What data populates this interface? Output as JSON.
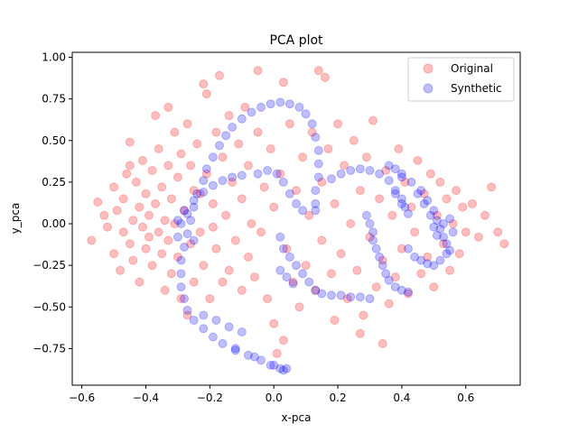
{
  "chart_data": {
    "type": "scatter",
    "title": "PCA plot",
    "xlabel": "x-pca",
    "ylabel": "y_pca",
    "xlim": [
      -0.63,
      0.77
    ],
    "ylim": [
      -0.97,
      1.03
    ],
    "xticks": [
      -0.6,
      -0.4,
      -0.2,
      0.0,
      0.2,
      0.4,
      0.6
    ],
    "xtick_labels": [
      "−0.6",
      "−0.4",
      "−0.2",
      "0.0",
      "0.2",
      "0.4",
      "0.6"
    ],
    "yticks": [
      -0.75,
      -0.5,
      -0.25,
      0.0,
      0.25,
      0.5,
      0.75,
      1.0
    ],
    "ytick_labels": [
      "−0.75",
      "−0.50",
      "−0.25",
      "0.00",
      "0.25",
      "0.50",
      "0.75",
      "1.00"
    ],
    "grid": false,
    "legend_position": "top-right",
    "series": [
      {
        "name": "Original",
        "color": "#ff0000",
        "alpha": 0.25,
        "points": [
          [
            -0.57,
            -0.1
          ],
          [
            -0.55,
            0.13
          ],
          [
            -0.53,
            0.05
          ],
          [
            -0.52,
            -0.02
          ],
          [
            -0.5,
            0.22
          ],
          [
            -0.5,
            -0.18
          ],
          [
            -0.49,
            0.08
          ],
          [
            -0.48,
            -0.28
          ],
          [
            -0.47,
            0.15
          ],
          [
            -0.47,
            -0.05
          ],
          [
            -0.46,
            0.3
          ],
          [
            -0.45,
            -0.12
          ],
          [
            -0.45,
            0.49
          ],
          [
            -0.44,
            0.02
          ],
          [
            -0.44,
            -0.22
          ],
          [
            -0.43,
            0.25
          ],
          [
            -0.42,
            -0.35
          ],
          [
            -0.42,
            0.1
          ],
          [
            -0.41,
            -0.02
          ],
          [
            -0.41,
            0.38
          ],
          [
            -0.4,
            -0.15
          ],
          [
            -0.4,
            0.18
          ],
          [
            -0.39,
            -0.08
          ],
          [
            -0.39,
            0.05
          ],
          [
            -0.38,
            0.32
          ],
          [
            -0.38,
            -0.25
          ],
          [
            -0.37,
            0.65
          ],
          [
            -0.37,
            0.12
          ],
          [
            -0.36,
            -0.05
          ],
          [
            -0.36,
            0.45
          ],
          [
            -0.35,
            -0.18
          ],
          [
            -0.35,
            0.22
          ],
          [
            -0.34,
            0.02
          ],
          [
            -0.34,
            -0.4
          ],
          [
            -0.33,
            0.35
          ],
          [
            -0.33,
            -0.1
          ],
          [
            -0.33,
            0.7
          ],
          [
            -0.32,
            0.15
          ],
          [
            -0.32,
            -0.3
          ],
          [
            -0.31,
            0.55
          ],
          [
            -0.31,
            0.0
          ],
          [
            -0.3,
            -0.2
          ],
          [
            -0.3,
            0.28
          ],
          [
            -0.29,
            0.42
          ],
          [
            -0.29,
            -0.45
          ],
          [
            -0.28,
            0.08
          ],
          [
            -0.27,
            -0.55
          ],
          [
            -0.27,
            0.6
          ],
          [
            -0.26,
            -0.12
          ],
          [
            -0.26,
            0.35
          ],
          [
            -0.25,
            0.2
          ],
          [
            -0.25,
            -0.35
          ],
          [
            -0.24,
            0.48
          ],
          [
            -0.23,
            -0.05
          ],
          [
            -0.22,
            0.84
          ],
          [
            -0.22,
            -0.25
          ],
          [
            -0.21,
            0.3
          ],
          [
            -0.21,
            0.78
          ],
          [
            -0.2,
            -0.45
          ],
          [
            -0.19,
            0.12
          ],
          [
            -0.18,
            0.55
          ],
          [
            -0.18,
            -0.15
          ],
          [
            -0.17,
            0.89
          ],
          [
            -0.16,
            0.4
          ],
          [
            -0.16,
            -0.35
          ],
          [
            -0.15,
            0.05
          ],
          [
            -0.14,
            0.65
          ],
          [
            -0.14,
            -0.28
          ],
          [
            -0.13,
            0.25
          ],
          [
            -0.12,
            -0.1
          ],
          [
            -0.11,
            0.48
          ],
          [
            -0.1,
            -0.4
          ],
          [
            -0.1,
            0.15
          ],
          [
            -0.09,
            0.7
          ],
          [
            -0.08,
            -0.2
          ],
          [
            -0.08,
            0.35
          ],
          [
            -0.07,
            0.0
          ],
          [
            -0.06,
            -0.32
          ],
          [
            -0.05,
            0.55
          ],
          [
            -0.05,
            0.92
          ],
          [
            -0.04,
            -0.05
          ],
          [
            -0.03,
            0.22
          ],
          [
            -0.02,
            -0.45
          ],
          [
            -0.01,
            0.45
          ],
          [
            0.0,
            -0.6
          ],
          [
            0.0,
            0.1
          ],
          [
            0.01,
            -0.78
          ],
          [
            0.02,
            0.3
          ],
          [
            0.03,
            -0.7
          ],
          [
            0.03,
            0.85
          ],
          [
            0.04,
            -0.15
          ],
          [
            0.05,
            0.6
          ],
          [
            0.06,
            -0.35
          ],
          [
            0.07,
            0.2
          ],
          [
            0.08,
            -0.5
          ],
          [
            0.09,
            0.4
          ],
          [
            0.1,
            -0.25
          ],
          [
            0.11,
            0.05
          ],
          [
            0.12,
            0.55
          ],
          [
            0.13,
            -0.4
          ],
          [
            0.14,
            0.92
          ],
          [
            0.15,
            0.25
          ],
          [
            0.15,
            -0.1
          ],
          [
            0.16,
            0.88
          ],
          [
            0.17,
            0.45
          ],
          [
            0.18,
            -0.3
          ],
          [
            0.19,
            0.12
          ],
          [
            0.2,
            0.6
          ],
          [
            0.21,
            -0.18
          ],
          [
            0.22,
            0.35
          ],
          [
            0.23,
            -0.45
          ],
          [
            0.24,
            0.0
          ],
          [
            0.25,
            0.5
          ],
          [
            0.26,
            -0.28
          ],
          [
            0.27,
            0.2
          ],
          [
            0.28,
            -0.55
          ],
          [
            0.29,
            0.4
          ],
          [
            0.3,
            -0.08
          ],
          [
            0.31,
            0.62
          ],
          [
            0.32,
            -0.38
          ],
          [
            0.33,
            0.15
          ],
          [
            0.34,
            -0.22
          ],
          [
            0.35,
            0.32
          ],
          [
            0.36,
            -0.48
          ],
          [
            0.37,
            0.05
          ],
          [
            0.38,
            -0.32
          ],
          [
            0.39,
            0.45
          ],
          [
            0.4,
            -0.15
          ],
          [
            0.41,
            0.25
          ],
          [
            0.42,
            -0.42
          ],
          [
            0.43,
            0.1
          ],
          [
            0.44,
            -0.05
          ],
          [
            0.45,
            0.38
          ],
          [
            0.46,
            -0.3
          ],
          [
            0.47,
            0.18
          ],
          [
            0.48,
            -0.2
          ],
          [
            0.49,
            0.3
          ],
          [
            0.5,
            -0.38
          ],
          [
            0.51,
            0.05
          ],
          [
            0.52,
            0.25
          ],
          [
            0.53,
            -0.12
          ],
          [
            0.54,
            0.15
          ],
          [
            0.55,
            -0.28
          ],
          [
            0.56,
            0.0
          ],
          [
            0.57,
            0.2
          ],
          [
            0.58,
            -0.18
          ],
          [
            0.59,
            0.1
          ],
          [
            0.6,
            -0.05
          ],
          [
            0.62,
            0.12
          ],
          [
            0.64,
            -0.08
          ],
          [
            0.66,
            0.05
          ],
          [
            0.68,
            0.22
          ],
          [
            0.7,
            -0.05
          ],
          [
            0.72,
            -0.12
          ],
          [
            0.34,
            -0.72
          ],
          [
            0.27,
            -0.66
          ],
          [
            -0.23,
            0.18
          ],
          [
            -0.19,
            -0.02
          ],
          [
            -0.45,
            0.35
          ],
          [
            0.19,
            -0.58
          ]
        ]
      },
      {
        "name": "Synthetic",
        "color": "#0000ff",
        "alpha": 0.25,
        "points": [
          [
            -0.28,
            -0.45
          ],
          [
            -0.29,
            -0.38
          ],
          [
            -0.29,
            -0.3
          ],
          [
            -0.29,
            -0.22
          ],
          [
            -0.28,
            -0.14
          ],
          [
            -0.27,
            -0.06
          ],
          [
            -0.26,
            0.02
          ],
          [
            -0.25,
            0.1
          ],
          [
            -0.24,
            0.18
          ],
          [
            -0.22,
            0.26
          ],
          [
            -0.21,
            0.33
          ],
          [
            -0.19,
            0.4
          ],
          [
            -0.17,
            0.47
          ],
          [
            -0.15,
            0.53
          ],
          [
            -0.13,
            0.58
          ],
          [
            -0.1,
            0.63
          ],
          [
            -0.07,
            0.67
          ],
          [
            -0.04,
            0.7
          ],
          [
            -0.01,
            0.72
          ],
          [
            0.02,
            0.73
          ],
          [
            0.05,
            0.72
          ],
          [
            0.08,
            0.7
          ],
          [
            0.1,
            0.66
          ],
          [
            0.12,
            0.6
          ],
          [
            0.13,
            0.52
          ],
          [
            0.14,
            0.44
          ],
          [
            0.14,
            0.36
          ],
          [
            0.14,
            0.28
          ],
          [
            0.13,
            0.2
          ],
          [
            0.13,
            0.12
          ],
          [
            0.13,
            0.08
          ],
          [
            -0.27,
            -0.52
          ],
          [
            -0.25,
            -0.58
          ],
          [
            -0.22,
            -0.63
          ],
          [
            -0.19,
            -0.68
          ],
          [
            -0.16,
            -0.72
          ],
          [
            -0.12,
            -0.76
          ],
          [
            -0.08,
            -0.79
          ],
          [
            -0.04,
            -0.82
          ],
          [
            -0.01,
            -0.85
          ],
          [
            0.02,
            -0.87
          ],
          [
            0.03,
            -0.88
          ],
          [
            -0.3,
            0.02
          ],
          [
            -0.28,
            0.08
          ],
          [
            -0.25,
            0.14
          ],
          [
            -0.22,
            0.19
          ],
          [
            -0.19,
            0.23
          ],
          [
            -0.16,
            0.26
          ],
          [
            -0.13,
            0.28
          ],
          [
            -0.1,
            0.29
          ],
          [
            -0.3,
            -0.08
          ],
          [
            -0.29,
            0.0
          ],
          [
            -0.27,
            0.06
          ],
          [
            -0.25,
            -0.1
          ],
          [
            -0.22,
            -0.55
          ],
          [
            -0.18,
            -0.58
          ],
          [
            -0.14,
            -0.62
          ],
          [
            -0.1,
            -0.65
          ],
          [
            -0.05,
            0.3
          ],
          [
            -0.02,
            0.32
          ],
          [
            0.01,
            0.3
          ],
          [
            0.03,
            0.25
          ],
          [
            0.05,
            0.18
          ],
          [
            0.07,
            0.12
          ],
          [
            0.09,
            0.08
          ],
          [
            0.02,
            -0.08
          ],
          [
            0.03,
            -0.15
          ],
          [
            0.05,
            -0.2
          ],
          [
            0.07,
            -0.25
          ],
          [
            0.09,
            -0.3
          ],
          [
            0.11,
            -0.35
          ],
          [
            0.13,
            -0.4
          ],
          [
            0.15,
            -0.42
          ],
          [
            0.18,
            -0.43
          ],
          [
            0.21,
            -0.43
          ],
          [
            0.24,
            -0.44
          ],
          [
            0.27,
            -0.44
          ],
          [
            0.3,
            -0.45
          ],
          [
            0.02,
            -0.28
          ],
          [
            0.04,
            -0.32
          ],
          [
            0.06,
            -0.36
          ],
          [
            0.18,
            0.27
          ],
          [
            0.21,
            0.3
          ],
          [
            0.24,
            0.32
          ],
          [
            0.27,
            0.33
          ],
          [
            0.3,
            0.32
          ],
          [
            0.33,
            0.3
          ],
          [
            0.36,
            0.26
          ],
          [
            0.38,
            0.2
          ],
          [
            0.4,
            0.15
          ],
          [
            0.41,
            0.1
          ],
          [
            0.42,
            0.06
          ],
          [
            0.36,
            0.35
          ],
          [
            0.38,
            0.33
          ],
          [
            0.4,
            0.3
          ],
          [
            0.29,
            0.05
          ],
          [
            0.3,
            0.0
          ],
          [
            0.31,
            -0.05
          ],
          [
            0.31,
            -0.1
          ],
          [
            0.32,
            -0.15
          ],
          [
            0.33,
            -0.2
          ],
          [
            0.34,
            -0.25
          ],
          [
            0.35,
            -0.3
          ],
          [
            0.36,
            -0.34
          ],
          [
            0.38,
            -0.38
          ],
          [
            0.4,
            -0.4
          ],
          [
            0.42,
            -0.41
          ],
          [
            0.4,
            0.28
          ],
          [
            0.43,
            0.25
          ],
          [
            0.46,
            0.2
          ],
          [
            0.48,
            0.14
          ],
          [
            0.5,
            0.08
          ],
          [
            0.51,
            0.02
          ],
          [
            0.52,
            -0.03
          ],
          [
            0.53,
            -0.08
          ],
          [
            0.54,
            -0.12
          ],
          [
            0.55,
            -0.16
          ],
          [
            0.45,
            0.18
          ],
          [
            0.47,
            0.12
          ],
          [
            0.49,
            0.05
          ],
          [
            0.5,
            -0.02
          ],
          [
            0.51,
            -0.07
          ],
          [
            0.53,
            0.0
          ],
          [
            0.55,
            0.03
          ],
          [
            0.56,
            -0.05
          ],
          [
            0.38,
            0.18
          ],
          [
            0.4,
            0.12
          ],
          [
            0.42,
            -0.15
          ],
          [
            0.44,
            -0.2
          ],
          [
            0.46,
            -0.22
          ],
          [
            0.48,
            -0.24
          ],
          [
            0.5,
            -0.25
          ],
          [
            0.52,
            -0.22
          ],
          [
            0.54,
            -0.18
          ],
          [
            -0.12,
            -0.75
          ],
          [
            -0.06,
            -0.8
          ],
          [
            0.0,
            -0.85
          ],
          [
            0.04,
            -0.87
          ]
        ]
      }
    ]
  }
}
